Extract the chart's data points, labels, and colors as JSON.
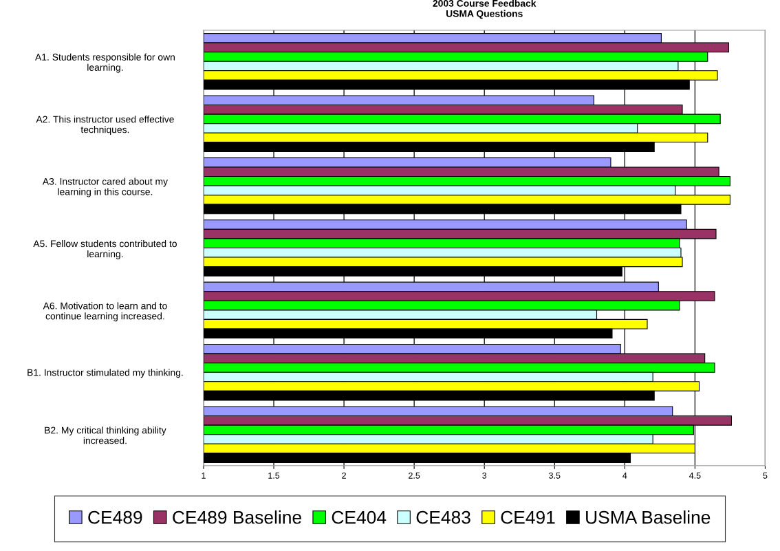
{
  "chart_data": {
    "type": "bar",
    "orientation": "horizontal",
    "title": "2003 Course Feedback\nUSMA Questions",
    "categories": [
      "A1. Students responsible for own\nlearning.",
      "A2. This instructor used effective\ntechniques.",
      "A3. Instructor cared about my\nlearning in this course.",
      "A5. Fellow students contributed to\nlearning.",
      "A6. Motivation to learn and to\ncontinue learning increased.",
      "B1. Instructor stimulated my thinking.",
      "B2. My critical thinking ability\nincreased."
    ],
    "series": [
      {
        "name": "CE489",
        "color": "#9999ff",
        "values": [
          4.26,
          3.78,
          3.9,
          4.44,
          4.24,
          3.97,
          4.34
        ]
      },
      {
        "name": "CE489 Baseline",
        "color": "#993366",
        "values": [
          4.74,
          4.41,
          4.67,
          4.65,
          4.64,
          4.57,
          4.76
        ]
      },
      {
        "name": "CE404",
        "color": "#00ff00",
        "values": [
          4.59,
          4.68,
          4.75,
          4.39,
          4.39,
          4.64,
          4.49
        ]
      },
      {
        "name": "CE483",
        "color": "#ccffff",
        "values": [
          4.38,
          4.09,
          4.36,
          4.4,
          3.8,
          4.2,
          4.2
        ]
      },
      {
        "name": "CE491",
        "color": "#ffff00",
        "values": [
          4.66,
          4.59,
          4.75,
          4.41,
          4.16,
          4.53,
          4.5
        ]
      },
      {
        "name": "USMA Baseline",
        "color": "#000000",
        "values": [
          4.46,
          4.21,
          4.4,
          3.98,
          3.91,
          4.21,
          4.04
        ]
      }
    ],
    "xlim": [
      1,
      5
    ],
    "xticks": [
      1,
      1.5,
      2,
      2.5,
      3,
      3.5,
      4,
      4.5,
      5
    ],
    "grid": "x",
    "legend": "bottom"
  }
}
